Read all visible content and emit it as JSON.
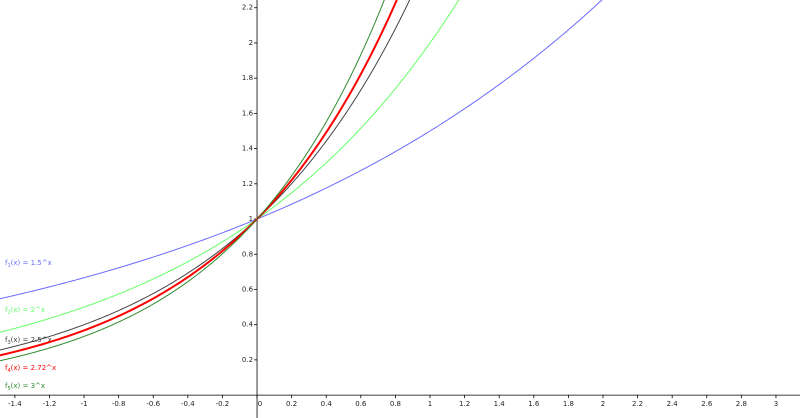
{
  "chart_data": {
    "type": "exponential",
    "xlim": [
      -1.486,
      3.139
    ],
    "ylim": [
      -0.13,
      2.244
    ],
    "xticks": [
      -1.4,
      -1.2,
      -1,
      -0.8,
      -0.6,
      -0.4,
      -0.2,
      0,
      0.2,
      0.4,
      0.6,
      0.8,
      1,
      1.2,
      1.4,
      1.6,
      1.8,
      2,
      2.2,
      2.4,
      2.6,
      2.8,
      3
    ],
    "yticks": [
      0.2,
      0.4,
      0.6,
      0.8,
      1,
      1.2,
      1.4,
      1.6,
      1.8,
      2,
      2.2
    ],
    "series": [
      {
        "name": "f",
        "subscript": "1",
        "expression": "(x) = 1.5^x",
        "base": 1.5,
        "color": "#6b6bff",
        "width": 1
      },
      {
        "name": "f",
        "subscript": "2",
        "expression": "(x) = 2^x",
        "base": 2,
        "color": "#66ff66",
        "width": 1
      },
      {
        "name": "f",
        "subscript": "3",
        "expression": "(x) = 2.5^x",
        "base": 2.5,
        "color": "#444444",
        "width": 1
      },
      {
        "name": "f",
        "subscript": "4",
        "expression": "(x) = 2.72^x",
        "base": 2.72,
        "color": "#ff0000",
        "width": 2
      },
      {
        "name": "f",
        "subscript": "5",
        "expression": "(x) = 3^x",
        "base": 3,
        "color": "#2e8b2e",
        "width": 1
      }
    ]
  }
}
